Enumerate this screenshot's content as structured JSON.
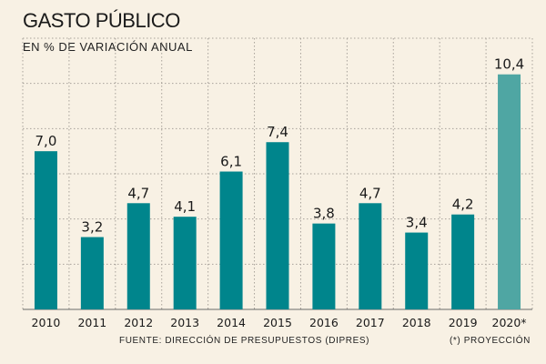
{
  "title": "GASTO PÚBLICO",
  "subtitle": "EN % DE VARIACIÓN ANUAL",
  "source": "FUENTE: DIRECCIÓN DE PRESUPUESTOS (DIPRES)",
  "note": "(*)  PROYECCIÓN",
  "colors": {
    "bar": "#00858c",
    "bar_projection": "#4fa6a3",
    "grid": "#a8a29a",
    "axis": "#6a6a6a",
    "background": "#f8f1e4"
  },
  "chart_data": {
    "type": "bar",
    "title": "GASTO PÚBLICO",
    "subtitle": "EN % DE VARIACIÓN ANUAL",
    "categories": [
      "2010",
      "2011",
      "2012",
      "2013",
      "2014",
      "2015",
      "2016",
      "2017",
      "2018",
      "2019",
      "2020*"
    ],
    "values": [
      7.0,
      3.2,
      4.7,
      4.1,
      6.1,
      7.4,
      3.8,
      4.7,
      3.4,
      4.2,
      10.4
    ],
    "labels": [
      "7,0",
      "3,2",
      "4,7",
      "4,1",
      "6,1",
      "7,4",
      "3,8",
      "4,7",
      "3,4",
      "4,2",
      "10,4"
    ],
    "projected": [
      false,
      false,
      false,
      false,
      false,
      false,
      false,
      false,
      false,
      false,
      true
    ],
    "xlabel": "",
    "ylabel": "",
    "ylim": [
      0,
      12
    ],
    "grid": true,
    "gridlines": [
      0,
      2,
      4,
      6,
      8,
      10,
      12
    ]
  }
}
